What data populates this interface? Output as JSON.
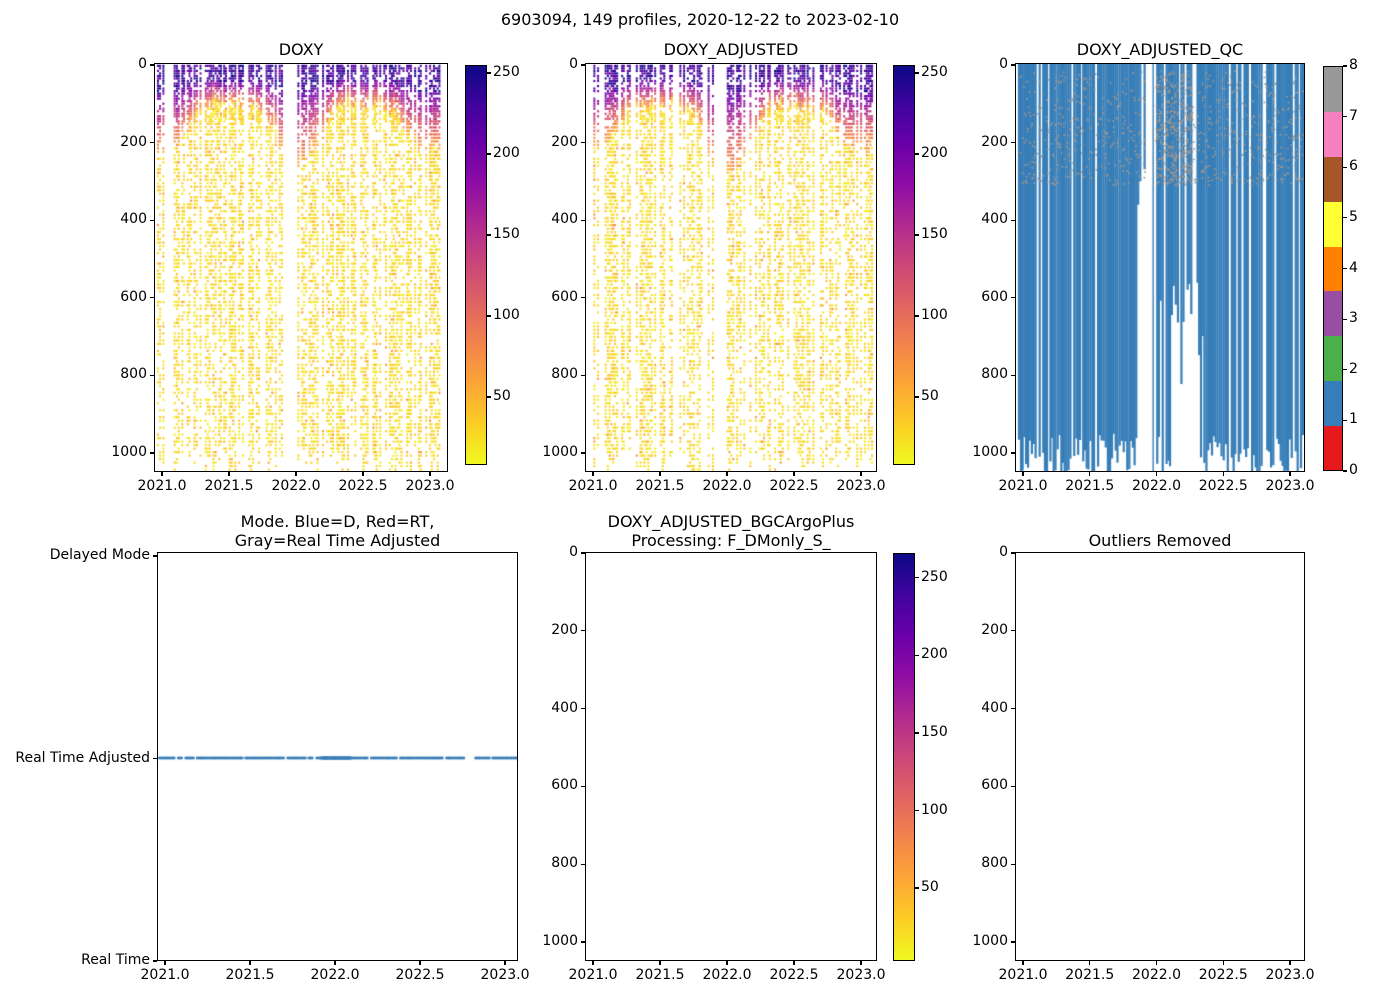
{
  "figure": {
    "suptitle": "6903094, 149 profiles, 2020-12-22 to 2023-02-10",
    "float_id": "6903094",
    "n_profiles": 149,
    "date_start": "2020-12-22",
    "date_end": "2023-02-10",
    "background": "#ffffff"
  },
  "palette": {
    "scatter_colormap": "plasma_r",
    "plasma_stops": [
      "#0d0887",
      "#41049d",
      "#6a00a8",
      "#8f0da4",
      "#b12a90",
      "#cc4778",
      "#e16462",
      "#f2844b",
      "#fca636",
      "#fcce25",
      "#f0f921"
    ],
    "qc_colors": [
      "#e41a1c",
      "#377eb8",
      "#4daf4a",
      "#984ea3",
      "#ff7f00",
      "#ffff33",
      "#a65628",
      "#f781bf",
      "#999999"
    ],
    "qc_bar_color": "#377eb8",
    "qc_flag8_color": "#9e968f",
    "mode_line_color": "#377eb8",
    "axis_color": "#000000",
    "text_color": "#000000"
  },
  "profiles": {
    "t_start": 2020.97,
    "t_end": 2023.105,
    "count": 149,
    "data_gap_doxy": [
      2021.925,
      2021.995
    ],
    "mode_gap": [
      2022.765,
      2022.825
    ],
    "mode_dense_period": [
      2021.92,
      2022.09
    ]
  },
  "chart_data": [
    {
      "type": "scatter",
      "title": "DOXY",
      "xlim": [
        2020.95,
        2023.14
      ],
      "ylim_depth": [
        0,
        1050
      ],
      "xticks": [
        2021.0,
        2021.5,
        2022.0,
        2022.5,
        2023.0
      ],
      "xtick_labels": [
        "2021.0",
        "2021.5",
        "2022.0",
        "2022.5",
        "2023.0"
      ],
      "yticks": [
        0,
        200,
        400,
        600,
        800,
        1000
      ],
      "ytick_labels": [
        "0",
        "200",
        "400",
        "600",
        "800",
        "1000"
      ],
      "colorbar": {
        "vmin": 8,
        "vmax": 255,
        "ticks": [
          50,
          100,
          150,
          200,
          250
        ],
        "tick_labels": [
          "50",
          "100",
          "150",
          "200",
          "250"
        ]
      },
      "field": {
        "surface_value_range": [
          205,
          255
        ],
        "mixed_layer_depth_m": [
          34,
          78
        ],
        "transition_value_range": [
          40,
          195
        ],
        "deep_value_range": [
          12,
          45
        ],
        "max_depth_m": 1050,
        "winter_mixing_peaks": [
          2021.0,
          2022.0,
          2023.0
        ],
        "winter_boost": 1.35
      },
      "seed": 7
    },
    {
      "type": "scatter",
      "title": "DOXY_ADJUSTED",
      "xlim": [
        2020.94,
        2023.12
      ],
      "ylim_depth": [
        0,
        1050
      ],
      "xticks": [
        2021.0,
        2021.5,
        2022.0,
        2022.5,
        2023.0
      ],
      "xtick_labels": [
        "2021.0",
        "2021.5",
        "2022.0",
        "2022.5",
        "2023.0"
      ],
      "yticks": [
        0,
        200,
        400,
        600,
        800,
        1000
      ],
      "ytick_labels": [
        "0",
        "200",
        "400",
        "600",
        "800",
        "1000"
      ],
      "colorbar": {
        "vmin": 8,
        "vmax": 255,
        "ticks": [
          50,
          100,
          150,
          200,
          250
        ],
        "tick_labels": [
          "50",
          "100",
          "150",
          "200",
          "250"
        ]
      },
      "field": {
        "surface_value_range": [
          205,
          255
        ],
        "mixed_layer_depth_m": [
          34,
          78
        ],
        "transition_value_range": [
          40,
          195
        ],
        "deep_value_range": [
          12,
          45
        ],
        "max_depth_m": 1050,
        "winter_mixing_peaks": [
          2021.0,
          2022.0,
          2023.0
        ],
        "winter_boost": 1.7
      },
      "seed": 11
    },
    {
      "type": "qc",
      "title": "DOXY_ADJUSTED_QC",
      "xlim": [
        2020.94,
        2023.11
      ],
      "ylim_depth": [
        0,
        1050
      ],
      "xticks": [
        2021.0,
        2021.5,
        2022.0,
        2022.5,
        2023.0
      ],
      "xtick_labels": [
        "2021.0",
        "2021.5",
        "2022.0",
        "2022.5",
        "2023.0"
      ],
      "yticks": [
        0,
        200,
        400,
        600,
        800,
        1000
      ],
      "ytick_labels": [
        "0",
        "200",
        "400",
        "600",
        "800",
        "1000"
      ],
      "colorbar": {
        "vmin": 0,
        "vmax": 8,
        "ticks": [
          0,
          1,
          2,
          3,
          4,
          5,
          6,
          7,
          8
        ],
        "tick_labels": [
          "0",
          "1",
          "2",
          "3",
          "4",
          "5",
          "6",
          "7",
          "8"
        ]
      },
      "bars": {
        "qc_value": 1,
        "full_depth_range": [
          950,
          1060
        ],
        "short_cluster_period": [
          2022.03,
          2022.35
        ],
        "short_cluster_depth": [
          560,
          830
        ],
        "shallow_period": [
          2021.85,
          2021.928
        ],
        "shallow_depth": [
          150,
          470
        ],
        "spike_time": 2021.975,
        "spike_depth": 1050
      },
      "speckles": {
        "qc_value": 8,
        "depth_max": 310,
        "count": 750,
        "extra_count": 320,
        "extra_period": [
          2021.995,
          2022.27
        ]
      },
      "seed": 23
    },
    {
      "type": "mode",
      "title": "Mode. Blue=D, Red=RT,\nGray=Real Time Adjusted",
      "xlim": [
        2020.95,
        2023.08
      ],
      "xticks": [
        2021.0,
        2021.5,
        2022.0,
        2022.5,
        2023.0
      ],
      "xtick_labels": [
        "2021.0",
        "2021.5",
        "2022.0",
        "2022.5",
        "2023.0"
      ],
      "ytick_labels": [
        "Delayed Mode",
        "Real Time Adjusted",
        "Real Time"
      ],
      "line_value": "Real Time Adjusted",
      "seed": 31
    },
    {
      "type": "empty_scatter",
      "title": "DOXY_ADJUSTED_BGCArgoPlus\nProcessing: F_DMonly_S_",
      "xlim": [
        2020.94,
        2023.12
      ],
      "ylim_depth": [
        0,
        1050
      ],
      "xticks": [
        2021.0,
        2021.5,
        2022.0,
        2022.5,
        2023.0
      ],
      "xtick_labels": [
        "2021.0",
        "2021.5",
        "2022.0",
        "2022.5",
        "2023.0"
      ],
      "yticks": [
        0,
        200,
        400,
        600,
        800,
        1000
      ],
      "ytick_labels": [
        "0",
        "200",
        "400",
        "600",
        "800",
        "1000"
      ],
      "colorbar": {
        "vmin": 3,
        "vmax": 266,
        "ticks": [
          50,
          100,
          150,
          200,
          250
        ],
        "tick_labels": [
          "50",
          "100",
          "150",
          "200",
          "250"
        ]
      },
      "seed": 41
    },
    {
      "type": "empty",
      "title": "Outliers Removed",
      "xlim": [
        2020.94,
        2023.11
      ],
      "ylim_depth": [
        0,
        1050
      ],
      "xticks": [
        2021.0,
        2021.5,
        2022.0,
        2022.5,
        2023.0
      ],
      "xtick_labels": [
        "2021.0",
        "2021.5",
        "2022.0",
        "2022.5",
        "2023.0"
      ],
      "yticks": [
        0,
        200,
        400,
        600,
        800,
        1000
      ],
      "ytick_labels": [
        "0",
        "200",
        "400",
        "600",
        "800",
        "1000"
      ],
      "seed": 43
    }
  ]
}
